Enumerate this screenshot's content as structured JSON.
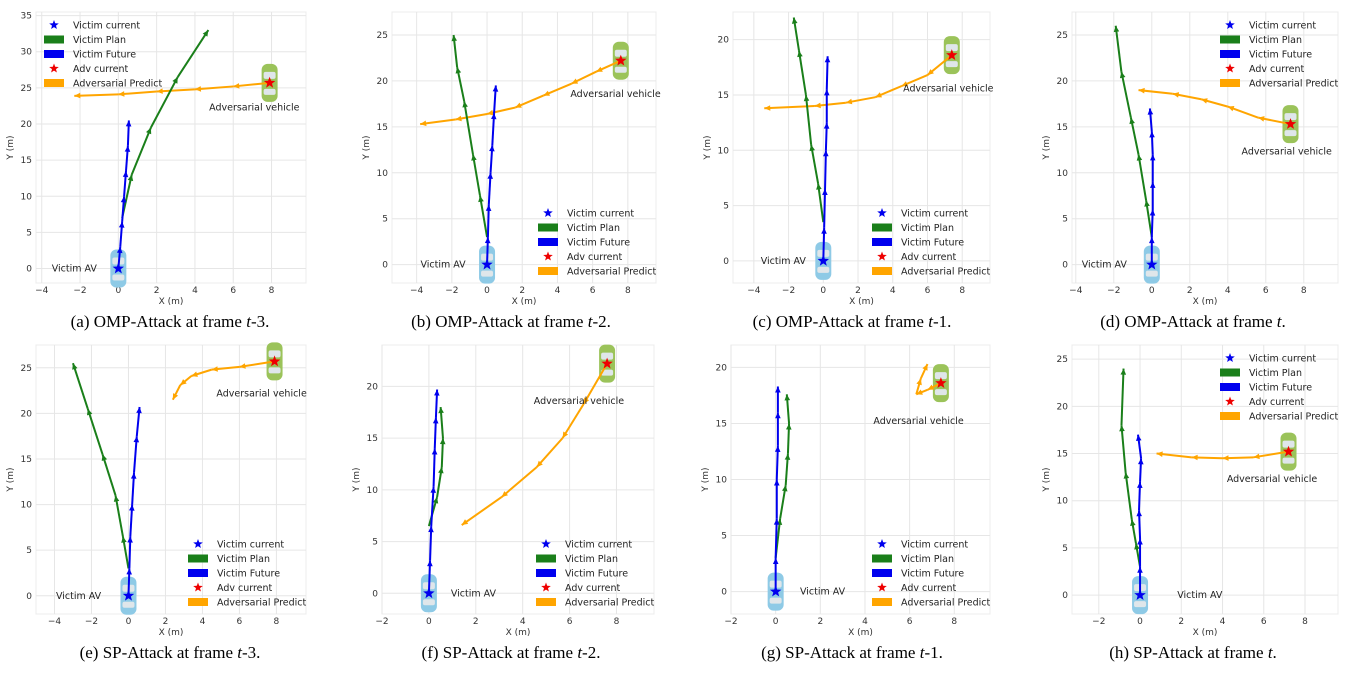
{
  "colors": {
    "victim_plan": "#1a7f1a",
    "victim_future": "#0000ee",
    "adv_predict": "#ffa500",
    "victim_star": "#0000ee",
    "adv_star": "#ee0000",
    "victim_car": "#8ecae6",
    "adv_car": "#9bc35a",
    "grid": "#e6e6e6"
  },
  "legend_labels": [
    "Victim current",
    "Victim Plan",
    "Victim Future",
    "Adv current",
    "Adversarial Predict"
  ],
  "chart_data": [
    {
      "type": "line",
      "caption": {
        "prefix": "(a) OMP-Attack at frame ",
        "var": "t",
        "suffix": "-3."
      },
      "xlabel": "X (m)",
      "ylabel": "Y (m)",
      "xlim": [
        -4.3,
        9.8
      ],
      "ylim": [
        -2,
        35.5
      ],
      "xticks": [
        -4,
        -2,
        0,
        2,
        4,
        6,
        8
      ],
      "yticks": [
        0,
        5,
        10,
        15,
        20,
        25,
        30,
        35
      ],
      "grid": true,
      "legend": "top-left",
      "annotations": [
        {
          "text": "Victim AV",
          "x": -2.3,
          "y": 0
        },
        {
          "text": "Adversarial vehicle",
          "x": 7.1,
          "y": 22.3
        }
      ],
      "victim_current": [
        0,
        0
      ],
      "adv_current": [
        7.9,
        25.7
      ],
      "victim_future": [
        [
          0,
          0
        ],
        [
          0.1,
          3
        ],
        [
          0.2,
          6.5
        ],
        [
          0.3,
          10
        ],
        [
          0.4,
          13.5
        ],
        [
          0.5,
          17
        ],
        [
          0.55,
          20.5
        ]
      ],
      "victim_plan": [
        [
          0.2,
          7
        ],
        [
          0.7,
          13
        ],
        [
          1.7,
          19.5
        ],
        [
          3.1,
          26.5
        ],
        [
          4.7,
          33
        ]
      ],
      "adv_predict": [
        [
          7.9,
          25.7
        ],
        [
          6,
          25.2
        ],
        [
          4,
          24.8
        ],
        [
          2,
          24.5
        ],
        [
          0,
          24.1
        ],
        [
          -2.3,
          23.9
        ]
      ]
    },
    {
      "type": "line",
      "caption": {
        "prefix": "(b) OMP-Attack at frame ",
        "var": "t",
        "suffix": "-2."
      },
      "xlabel": "X (m)",
      "ylabel": "Y (m)",
      "xlim": [
        -5.4,
        9.6
      ],
      "ylim": [
        -2,
        27.5
      ],
      "xticks": [
        -4,
        -2,
        0,
        2,
        4,
        6,
        8
      ],
      "yticks": [
        0,
        5,
        10,
        15,
        20,
        25
      ],
      "grid": true,
      "legend": "bottom-right",
      "annotations": [
        {
          "text": "Victim AV",
          "x": -2.5,
          "y": 0
        },
        {
          "text": "Adversarial vehicle",
          "x": 7.3,
          "y": 18.6
        }
      ],
      "victim_current": [
        0,
        0
      ],
      "adv_current": [
        7.6,
        22.2
      ],
      "victim_future": [
        [
          0,
          0
        ],
        [
          0.05,
          3
        ],
        [
          0.1,
          6.5
        ],
        [
          0.2,
          10
        ],
        [
          0.3,
          13
        ],
        [
          0.4,
          16.5
        ],
        [
          0.5,
          19.5
        ]
      ],
      "victim_plan": [
        [
          0,
          3
        ],
        [
          -0.4,
          7.5
        ],
        [
          -0.8,
          12
        ],
        [
          -1.3,
          17.8
        ],
        [
          -1.7,
          21.5
        ],
        [
          -1.9,
          25
        ]
      ],
      "adv_predict": [
        [
          7.6,
          22.2
        ],
        [
          6.2,
          21
        ],
        [
          4.8,
          19.7
        ],
        [
          3.2,
          18.4
        ],
        [
          1.6,
          17.1
        ],
        [
          0,
          16.4
        ],
        [
          -1.8,
          15.8
        ],
        [
          -3.8,
          15.3
        ]
      ]
    },
    {
      "type": "line",
      "caption": {
        "prefix": "(c) OMP-Attack at frame ",
        "var": "t",
        "suffix": "-1."
      },
      "xlabel": "X (m)",
      "ylabel": "Y (m)",
      "xlim": [
        -5.2,
        9.6
      ],
      "ylim": [
        -2,
        22.5
      ],
      "xticks": [
        -4,
        -2,
        0,
        2,
        4,
        6,
        8
      ],
      "yticks": [
        0,
        5,
        10,
        15,
        20
      ],
      "grid": true,
      "legend": "bottom-right",
      "annotations": [
        {
          "text": "Victim AV",
          "x": -2.3,
          "y": 0
        },
        {
          "text": "Adversarial vehicle",
          "x": 7.2,
          "y": 15.6
        }
      ],
      "victim_current": [
        0,
        0
      ],
      "adv_current": [
        7.4,
        18.6
      ],
      "victim_future": [
        [
          0,
          0
        ],
        [
          0.05,
          3
        ],
        [
          0.1,
          6.5
        ],
        [
          0.15,
          10
        ],
        [
          0.2,
          12.5
        ],
        [
          0.2,
          15.5
        ],
        [
          0.25,
          18.5
        ]
      ],
      "victim_plan": [
        [
          0,
          3.5
        ],
        [
          -0.3,
          7
        ],
        [
          -0.7,
          10.5
        ],
        [
          -1,
          15
        ],
        [
          -1.4,
          19
        ],
        [
          -1.7,
          22
        ]
      ],
      "adv_predict": [
        [
          7.4,
          18.6
        ],
        [
          6,
          16.8
        ],
        [
          4.5,
          15.8
        ],
        [
          3,
          14.8
        ],
        [
          1.3,
          14.3
        ],
        [
          -0.5,
          14
        ],
        [
          -3.4,
          13.8
        ]
      ]
    },
    {
      "type": "line",
      "caption": {
        "prefix": "(d) OMP-Attack at frame ",
        "var": "t",
        "suffix": "."
      },
      "xlabel": "X (m)",
      "ylabel": "Y (m)",
      "xlim": [
        -4.2,
        9.8
      ],
      "ylim": [
        -2,
        27.5
      ],
      "xticks": [
        -4,
        -2,
        0,
        2,
        4,
        6,
        8
      ],
      "yticks": [
        0,
        5,
        10,
        15,
        20,
        25
      ],
      "grid": true,
      "legend": "top-right",
      "annotations": [
        {
          "text": "Victim AV",
          "x": -2.5,
          "y": 0
        },
        {
          "text": "Adversarial vehicle",
          "x": 7.1,
          "y": 12.3
        }
      ],
      "victim_current": [
        0,
        0
      ],
      "adv_current": [
        7.3,
        15.3
      ],
      "victim_future": [
        [
          0,
          0
        ],
        [
          0,
          3
        ],
        [
          0.05,
          6
        ],
        [
          0.05,
          9
        ],
        [
          0.05,
          12
        ],
        [
          0,
          14.5
        ],
        [
          -0.1,
          17
        ]
      ],
      "victim_plan": [
        [
          0,
          3
        ],
        [
          -0.3,
          7
        ],
        [
          -0.7,
          12
        ],
        [
          -1.1,
          16
        ],
        [
          -1.6,
          21
        ],
        [
          -1.9,
          26
        ]
      ],
      "adv_predict": [
        [
          7.3,
          15.3
        ],
        [
          5.6,
          16
        ],
        [
          4,
          17.2
        ],
        [
          2.6,
          18
        ],
        [
          1.1,
          18.6
        ],
        [
          -0.7,
          19
        ]
      ]
    },
    {
      "type": "line",
      "caption": {
        "prefix": "(e) SP-Attack at frame ",
        "var": "t",
        "suffix": "-3."
      },
      "xlabel": "X (m)",
      "ylabel": "Y (m)",
      "xlim": [
        -5,
        9.6
      ],
      "ylim": [
        -2,
        27.5
      ],
      "xticks": [
        -4,
        -2,
        0,
        2,
        4,
        6,
        8
      ],
      "yticks": [
        0,
        5,
        10,
        15,
        20,
        25
      ],
      "grid": true,
      "legend": "bottom-right",
      "annotations": [
        {
          "text": "Victim AV",
          "x": -2.7,
          "y": 0
        },
        {
          "text": "Adversarial vehicle",
          "x": 7.2,
          "y": 22.2
        }
      ],
      "victim_current": [
        0,
        0
      ],
      "adv_current": [
        7.9,
        25.7
      ],
      "victim_future": [
        [
          0,
          0
        ],
        [
          0.05,
          3
        ],
        [
          0.1,
          6.5
        ],
        [
          0.2,
          10
        ],
        [
          0.3,
          13.5
        ],
        [
          0.45,
          17.5
        ],
        [
          0.6,
          20.7
        ]
      ],
      "victim_plan": [
        [
          0,
          3
        ],
        [
          -0.3,
          6.5
        ],
        [
          -0.7,
          11
        ],
        [
          -1.4,
          15.5
        ],
        [
          -2.2,
          20.5
        ],
        [
          -3,
          25.5
        ]
      ],
      "adv_predict": [
        [
          7.9,
          25.7
        ],
        [
          6,
          25.1
        ],
        [
          4.5,
          24.8
        ],
        [
          3.4,
          24.1
        ],
        [
          2.8,
          23.1
        ],
        [
          2.4,
          21.5
        ]
      ]
    },
    {
      "type": "line",
      "caption": {
        "prefix": "(f) SP-Attack at frame ",
        "var": "t",
        "suffix": "-2."
      },
      "xlabel": "X (m)",
      "ylabel": "Y (m)",
      "xlim": [
        -2,
        9.6
      ],
      "ylim": [
        -2,
        24
      ],
      "xticks": [
        -2,
        0,
        2,
        4,
        6,
        8
      ],
      "yticks": [
        0,
        5,
        10,
        15,
        20
      ],
      "grid": true,
      "legend": "bottom-right",
      "annotations": [
        {
          "text": "Victim AV",
          "x": 1.9,
          "y": 0
        },
        {
          "text": "Adversarial vehicle",
          "x": 6.4,
          "y": 18.6
        }
      ],
      "victim_current": [
        0,
        0
      ],
      "adv_current": [
        7.6,
        22.2
      ],
      "victim_future": [
        [
          0,
          0
        ],
        [
          0.05,
          3.2
        ],
        [
          0.1,
          6.5
        ],
        [
          0.2,
          10.3
        ],
        [
          0.25,
          14
        ],
        [
          0.3,
          17
        ],
        [
          0.35,
          19.7
        ]
      ],
      "victim_plan": [
        [
          0,
          6.5
        ],
        [
          0.35,
          9.3
        ],
        [
          0.55,
          12.2
        ],
        [
          0.6,
          15
        ],
        [
          0.5,
          18
        ]
      ],
      "adv_predict": [
        [
          7.6,
          22.2
        ],
        [
          6.6,
          18.3
        ],
        [
          5.7,
          15
        ],
        [
          4.6,
          12.2
        ],
        [
          3.1,
          9.3
        ],
        [
          1.4,
          6.6
        ]
      ]
    },
    {
      "type": "line",
      "caption": {
        "prefix": "(g) SP-Attack at frame ",
        "var": "t",
        "suffix": "-1."
      },
      "xlabel": "X (m)",
      "ylabel": "Y (m)",
      "xlim": [
        -2,
        9.6
      ],
      "ylim": [
        -2,
        22
      ],
      "xticks": [
        -2,
        0,
        2,
        4,
        6,
        8
      ],
      "yticks": [
        0,
        5,
        10,
        15,
        20
      ],
      "grid": true,
      "legend": "bottom-right",
      "annotations": [
        {
          "text": "Victim AV",
          "x": 2.1,
          "y": 0
        },
        {
          "text": "Adversarial vehicle",
          "x": 6.4,
          "y": 15.2
        }
      ],
      "victim_current": [
        0,
        0
      ],
      "adv_current": [
        7.4,
        18.6
      ],
      "victim_future": [
        [
          0,
          0
        ],
        [
          0,
          3
        ],
        [
          0.05,
          6.5
        ],
        [
          0.05,
          10
        ],
        [
          0.1,
          13
        ],
        [
          0.1,
          16
        ],
        [
          0.1,
          18.3
        ]
      ],
      "victim_plan": [
        [
          0,
          3
        ],
        [
          0.2,
          6.5
        ],
        [
          0.45,
          9.5
        ],
        [
          0.55,
          12.3
        ],
        [
          0.6,
          15
        ],
        [
          0.5,
          17.6
        ]
      ],
      "adv_predict": [
        [
          7.4,
          18.6
        ],
        [
          6.8,
          18
        ],
        [
          6.3,
          17.6
        ],
        [
          6.5,
          19
        ],
        [
          6.8,
          20.3
        ]
      ]
    },
    {
      "type": "line",
      "caption": {
        "prefix": "(h) SP-Attack at frame ",
        "var": "t",
        "suffix": "."
      },
      "xlabel": "X (m)",
      "ylabel": "Y (m)",
      "xlim": [
        -3.3,
        9.6
      ],
      "ylim": [
        -2,
        26.5
      ],
      "xticks": [
        -2,
        0,
        2,
        4,
        6,
        8
      ],
      "yticks": [
        0,
        5,
        10,
        15,
        20,
        25
      ],
      "grid": true,
      "legend": "top-right",
      "annotations": [
        {
          "text": "Victim AV",
          "x": 2.9,
          "y": 0
        },
        {
          "text": "Adversarial vehicle",
          "x": 6.4,
          "y": 12.3
        }
      ],
      "victim_current": [
        0,
        0
      ],
      "adv_current": [
        7.2,
        15.2
      ],
      "victim_future": [
        [
          0,
          0
        ],
        [
          0,
          3
        ],
        [
          0,
          6
        ],
        [
          -0.05,
          9
        ],
        [
          0,
          12
        ],
        [
          0.05,
          14.5
        ],
        [
          -0.1,
          17
        ]
      ],
      "victim_plan": [
        [
          0,
          3
        ],
        [
          -0.2,
          5.5
        ],
        [
          -0.4,
          8
        ],
        [
          -0.7,
          13
        ],
        [
          -0.9,
          18
        ],
        [
          -0.8,
          24
        ]
      ],
      "adv_predict": [
        [
          7.2,
          15.2
        ],
        [
          5.5,
          14.6
        ],
        [
          4,
          14.5
        ],
        [
          2.5,
          14.6
        ],
        [
          0.8,
          15
        ]
      ]
    }
  ]
}
